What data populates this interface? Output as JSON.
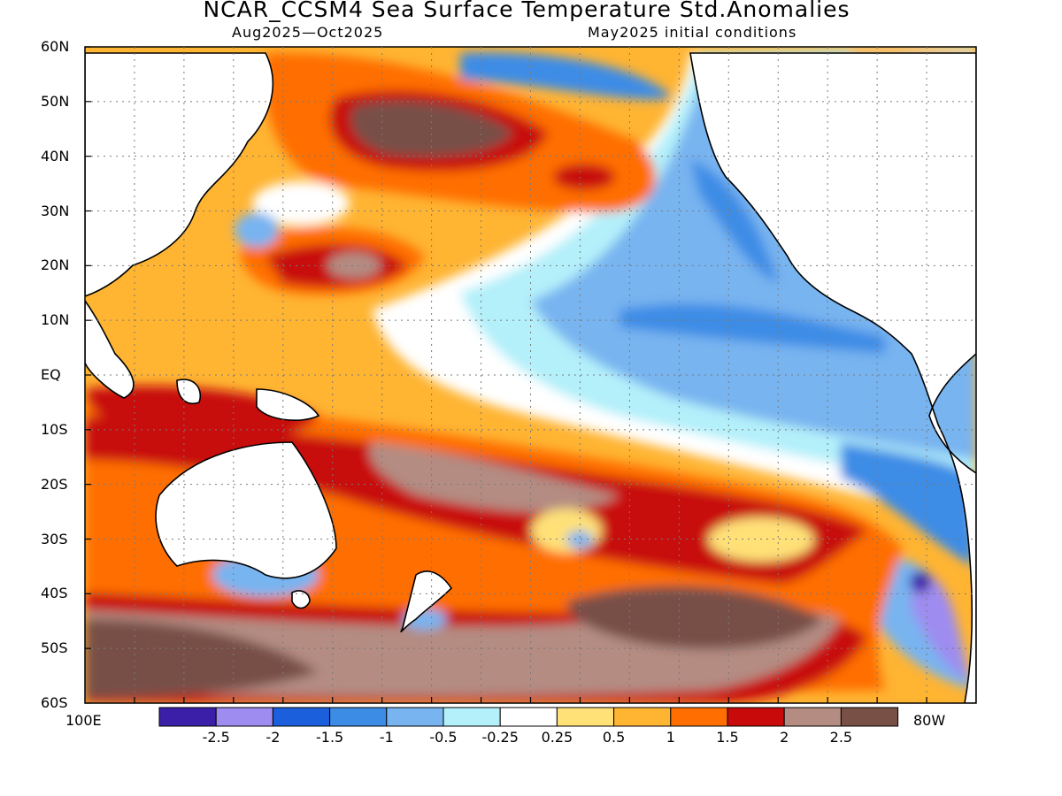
{
  "title": "NCAR_CCSM4 Sea Surface Temperature Std.Anomalies",
  "subtitle_left": "Aug2025—Oct2025",
  "subtitle_right": "May2025 initial conditions",
  "lat_labels": [
    "60N",
    "50N",
    "40N",
    "30N",
    "20N",
    "10N",
    "EQ",
    "10S",
    "20S",
    "30S",
    "40S",
    "50S",
    "60S"
  ],
  "lon_labels": {
    "left": "100E",
    "right": "80W"
  },
  "colorbar": {
    "colors": [
      "#3c1fa8",
      "#9e8cf0",
      "#1c5fdc",
      "#3c8ce6",
      "#78b4f0",
      "#b4f0fa",
      "#ffffff",
      "#ffe178",
      "#ffb432",
      "#ff6e00",
      "#c80a0a",
      "#b48c82",
      "#785046"
    ],
    "labels": [
      "-2.5",
      "-2",
      "-1.5",
      "-1",
      "-0.5",
      "-0.25",
      "0.25",
      "0.5",
      "1",
      "1.5",
      "2",
      "2.5"
    ]
  }
}
